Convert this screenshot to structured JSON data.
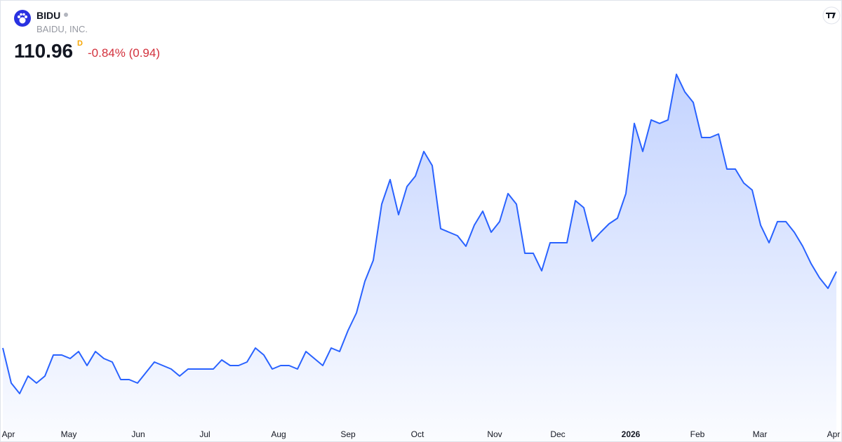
{
  "header": {
    "symbol": "BIDU",
    "name": "BAIDU, INC.",
    "price": "110.96",
    "interval": "D",
    "change": "-0.84% (0.94)"
  },
  "chart_data": {
    "type": "area",
    "ylim": [
      72,
      164
    ],
    "xlabels": [
      "Apr",
      "May",
      "Jun",
      "Jul",
      "Aug",
      "Sep",
      "Oct",
      "Nov",
      "Dec",
      "2026",
      "Feb",
      "Mar",
      "Apr"
    ],
    "series": [
      {
        "name": "BIDU",
        "color": "#2962ff",
        "values": [
          91.13,
          82.02,
          79.29,
          83.84,
          82.02,
          83.84,
          89.31,
          89.31,
          88.4,
          90.22,
          86.58,
          90.22,
          88.4,
          87.49,
          82.93,
          82.93,
          82.02,
          84.75,
          87.49,
          86.58,
          85.67,
          83.84,
          85.67,
          85.67,
          85.67,
          85.67,
          88.03,
          86.58,
          86.58,
          87.49,
          91.13,
          89.31,
          85.67,
          86.58,
          86.58,
          85.67,
          90.22,
          88.4,
          86.58,
          91.13,
          90.22,
          95.69,
          100.24,
          108.44,
          113.91,
          128.48,
          134.86,
          125.75,
          133.04,
          135.77,
          142.15,
          138.5,
          122.11,
          121.19,
          120.28,
          117.55,
          123.02,
          126.66,
          121.19,
          123.93,
          131.22,
          128.48,
          115.73,
          115.73,
          111.17,
          118.46,
          118.46,
          118.46,
          129.39,
          127.57,
          118.83,
          121.19,
          123.38,
          124.84,
          131.22,
          149.44,
          142.15,
          150.35,
          149.44,
          150.35,
          162.19,
          157.63,
          154.9,
          145.79,
          145.79,
          146.7,
          137.59,
          137.59,
          133.95,
          132.13,
          123.02,
          118.46,
          123.93,
          123.93,
          121.19,
          117.55,
          113.0,
          109.35,
          106.62,
          110.96
        ]
      }
    ]
  }
}
